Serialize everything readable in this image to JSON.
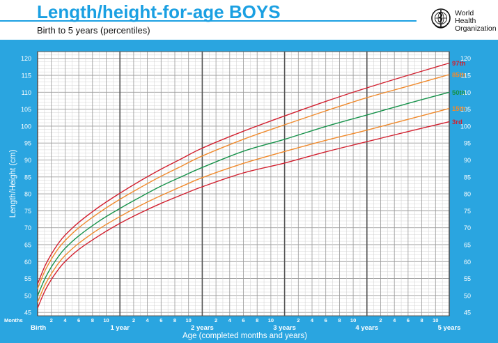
{
  "header": {
    "title": "Length/height-for-age BOYS",
    "subtitle": "Birth to 5 years (percentiles)",
    "org_line1": "World Health",
    "org_line2": "Organization",
    "logo_icon": "who-emblem-icon"
  },
  "colors": {
    "frame": "#2aa5e0",
    "title": "#1ba0e2",
    "p3": "#d2202f",
    "p15": "#f08a2c",
    "p50": "#16924a",
    "p85": "#f08a2c",
    "p97": "#d2202f"
  },
  "chart_data": {
    "type": "line",
    "title": "Length/height-for-age BOYS",
    "subtitle": "Birth to 5 years (percentiles)",
    "xlabel": "Age (completed months and years)",
    "ylabel": "Length/Height (cm)",
    "x_unit_label": "Months",
    "xlim": [
      0,
      60
    ],
    "ylim": [
      44,
      122
    ],
    "y_ticks": [
      45,
      50,
      55,
      60,
      65,
      70,
      75,
      80,
      85,
      90,
      95,
      100,
      105,
      110,
      115,
      120
    ],
    "x_month_ticks": [
      "2",
      "4",
      "6",
      "8",
      "10"
    ],
    "x_year_labels": [
      "Birth",
      "1 year",
      "2 years",
      "3 years",
      "4 years",
      "5 years"
    ],
    "grid": true,
    "x": [
      0,
      1,
      2,
      3,
      4,
      6,
      9,
      12,
      15,
      18,
      21,
      24,
      30,
      36,
      42,
      48,
      54,
      60
    ],
    "series": [
      {
        "name": "97th",
        "color": "#d2202f",
        "values": [
          53.4,
          58.4,
          62.2,
          65.3,
          67.8,
          71.6,
          76.2,
          80.2,
          83.9,
          87.3,
          90.4,
          93.5,
          98.5,
          103.0,
          107.3,
          111.3,
          115.0,
          118.6
        ]
      },
      {
        "name": "85th",
        "color": "#f08a2c",
        "values": [
          52.0,
          57.0,
          60.7,
          63.8,
          66.2,
          70.0,
          74.5,
          78.4,
          81.9,
          85.2,
          88.2,
          91.2,
          96.1,
          100.4,
          104.5,
          108.4,
          111.8,
          115.2
        ]
      },
      {
        "name": "50th",
        "color": "#16924a",
        "values": [
          49.9,
          54.7,
          58.4,
          61.4,
          63.9,
          67.6,
          72.0,
          75.7,
          79.1,
          82.3,
          85.1,
          87.8,
          92.6,
          96.1,
          99.9,
          103.3,
          106.7,
          110.0
        ]
      },
      {
        "name": "15th",
        "color": "#f08a2c",
        "values": [
          48.0,
          52.8,
          56.4,
          59.4,
          61.8,
          65.4,
          69.7,
          73.3,
          76.6,
          79.5,
          82.2,
          84.8,
          89.0,
          92.5,
          95.8,
          98.8,
          102.0,
          105.2
        ]
      },
      {
        "name": "3rd",
        "color": "#d2202f",
        "values": [
          46.3,
          51.1,
          54.7,
          57.6,
          60.0,
          63.6,
          67.7,
          71.3,
          74.4,
          77.2,
          79.7,
          82.1,
          86.2,
          89.1,
          92.4,
          95.4,
          98.4,
          101.3
        ]
      }
    ]
  }
}
